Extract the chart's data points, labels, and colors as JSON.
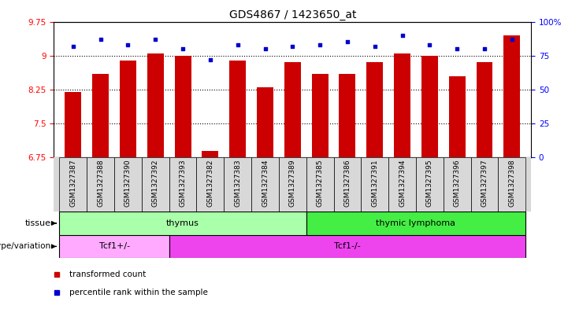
{
  "title": "GDS4867 / 1423650_at",
  "samples": [
    "GSM1327387",
    "GSM1327388",
    "GSM1327390",
    "GSM1327392",
    "GSM1327393",
    "GSM1327382",
    "GSM1327383",
    "GSM1327384",
    "GSM1327389",
    "GSM1327385",
    "GSM1327386",
    "GSM1327391",
    "GSM1327394",
    "GSM1327395",
    "GSM1327396",
    "GSM1327397",
    "GSM1327398"
  ],
  "bar_values": [
    8.2,
    8.6,
    8.9,
    9.05,
    9.0,
    6.9,
    8.9,
    8.3,
    8.85,
    8.6,
    8.6,
    8.85,
    9.05,
    9.0,
    8.55,
    8.85,
    9.45
  ],
  "dot_values": [
    82,
    87,
    83,
    87,
    80,
    72,
    83,
    80,
    82,
    83,
    85,
    82,
    90,
    83,
    80,
    80,
    87
  ],
  "bar_color": "#cc0000",
  "dot_color": "#0000cc",
  "ylim_left": [
    6.75,
    9.75
  ],
  "ylim_right": [
    0,
    100
  ],
  "yticks_left": [
    6.75,
    7.5,
    8.25,
    9.0,
    9.75
  ],
  "yticks_right": [
    0,
    25,
    50,
    75,
    100
  ],
  "ytick_labels_left": [
    "6.75",
    "7.5",
    "8.25",
    "9",
    "9.75"
  ],
  "ytick_labels_right": [
    "0",
    "25",
    "50",
    "75",
    "100%"
  ],
  "hlines": [
    9.0,
    8.25,
    7.5
  ],
  "tissue_groups": [
    {
      "label": "thymus",
      "start": 0,
      "end": 9,
      "color": "#aaffaa"
    },
    {
      "label": "thymic lymphoma",
      "start": 9,
      "end": 17,
      "color": "#44ee44"
    }
  ],
  "genotype_groups": [
    {
      "label": "Tcf1+/-",
      "start": 0,
      "end": 4,
      "color": "#ffaaff"
    },
    {
      "label": "Tcf1-/-",
      "start": 4,
      "end": 17,
      "color": "#ee44ee"
    }
  ],
  "legend_items": [
    {
      "color": "#cc0000",
      "label": "transformed count"
    },
    {
      "color": "#0000cc",
      "label": "percentile rank within the sample"
    }
  ],
  "bg_color": "#d8d8d8",
  "plot_bg": "#ffffff"
}
